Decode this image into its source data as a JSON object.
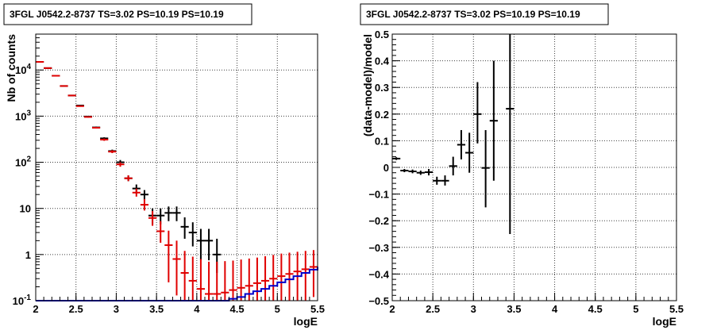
{
  "chart_data": [
    {
      "type": "scatter",
      "title": "3FGL J0542.2-8737 TS=3.02 PS=10.19 PS=10.19",
      "xlabel": "logE",
      "ylabel": "Nb of counts",
      "xlim": [
        2,
        5.5
      ],
      "ylim": [
        0.1,
        60000
      ],
      "yscale": "log",
      "grid": true,
      "x_ticks": [
        "2",
        "2.5",
        "3",
        "3.5",
        "4",
        "4.5",
        "5",
        "5.5"
      ],
      "y_ticks": [
        {
          "value": 0.1,
          "mantissa": "10",
          "exp": "-1"
        },
        {
          "value": 1,
          "mantissa": "1",
          "exp": ""
        },
        {
          "value": 10,
          "mantissa": "10",
          "exp": ""
        },
        {
          "value": 100,
          "mantissa": "10",
          "exp": "2"
        },
        {
          "value": 1000,
          "mantissa": "10",
          "exp": "3"
        },
        {
          "value": 10000,
          "mantissa": "10",
          "exp": "4"
        }
      ],
      "series": [
        {
          "color": "#000000",
          "points": [
            {
              "x": 2.05,
              "y": 15000,
              "lo": 14800,
              "hi": 15200
            },
            {
              "x": 2.15,
              "y": 11000,
              "lo": 10850,
              "hi": 11150
            },
            {
              "x": 2.25,
              "y": 7500,
              "lo": 7400,
              "hi": 7600
            },
            {
              "x": 2.35,
              "y": 4500,
              "lo": 4420,
              "hi": 4580
            },
            {
              "x": 2.45,
              "y": 2800,
              "lo": 2740,
              "hi": 2860
            },
            {
              "x": 2.55,
              "y": 1700,
              "lo": 1650,
              "hi": 1750
            },
            {
              "x": 2.65,
              "y": 980,
              "lo": 950,
              "hi": 1010
            },
            {
              "x": 2.75,
              "y": 570,
              "lo": 548,
              "hi": 592
            },
            {
              "x": 2.85,
              "y": 330,
              "lo": 312,
              "hi": 348
            },
            {
              "x": 2.95,
              "y": 175,
              "lo": 162,
              "hi": 188
            },
            {
              "x": 3.05,
              "y": 100,
              "lo": 88,
              "hi": 112
            },
            {
              "x": 3.15,
              "y": 45,
              "lo": 39,
              "hi": 52
            },
            {
              "x": 3.25,
              "y": 27,
              "lo": 21,
              "hi": 33
            },
            {
              "x": 3.35,
              "y": 20,
              "lo": 15,
              "hi": 25
            },
            {
              "x": 3.45,
              "y": 7,
              "lo": 4.5,
              "hi": 10
            },
            {
              "x": 3.55,
              "y": 7,
              "lo": 4.5,
              "hi": 10
            },
            {
              "x": 3.65,
              "y": 8,
              "lo": 5.3,
              "hi": 11
            },
            {
              "x": 3.75,
              "y": 8,
              "lo": 5.3,
              "hi": 11
            },
            {
              "x": 3.85,
              "y": 4,
              "lo": 2.2,
              "hi": 6.4
            },
            {
              "x": 3.95,
              "y": 3,
              "lo": 1.5,
              "hi": 5
            },
            {
              "x": 4.05,
              "y": 2,
              "lo": 0.75,
              "hi": 3.6
            },
            {
              "x": 4.15,
              "y": 2,
              "lo": 0.75,
              "hi": 3.6
            },
            {
              "x": 4.25,
              "y": 1,
              "lo": 0.4,
              "hi": 2.2
            }
          ]
        },
        {
          "color": "#e00000",
          "points": [
            {
              "x": 2.05,
              "y": 15000,
              "lo": 14800,
              "hi": 15200
            },
            {
              "x": 2.15,
              "y": 11000,
              "lo": 10850,
              "hi": 11150
            },
            {
              "x": 2.25,
              "y": 7500,
              "lo": 7400,
              "hi": 7600
            },
            {
              "x": 2.35,
              "y": 4500,
              "lo": 4420,
              "hi": 4580
            },
            {
              "x": 2.45,
              "y": 2800,
              "lo": 2740,
              "hi": 2860
            },
            {
              "x": 2.55,
              "y": 1650,
              "lo": 1600,
              "hi": 1700
            },
            {
              "x": 2.65,
              "y": 960,
              "lo": 930,
              "hi": 990
            },
            {
              "x": 2.75,
              "y": 560,
              "lo": 540,
              "hi": 580
            },
            {
              "x": 2.85,
              "y": 310,
              "lo": 292,
              "hi": 328
            },
            {
              "x": 2.95,
              "y": 170,
              "lo": 158,
              "hi": 182
            },
            {
              "x": 3.05,
              "y": 90,
              "lo": 80,
              "hi": 100
            },
            {
              "x": 3.15,
              "y": 45,
              "lo": 39,
              "hi": 52
            },
            {
              "x": 3.25,
              "y": 22,
              "lo": 18,
              "hi": 27
            },
            {
              "x": 3.35,
              "y": 12,
              "lo": 9,
              "hi": 16
            },
            {
              "x": 3.45,
              "y": 6.2,
              "lo": 4.2,
              "hi": 8.8
            },
            {
              "x": 3.55,
              "y": 3.2,
              "lo": 1.8,
              "hi": 5.3
            },
            {
              "x": 3.65,
              "y": 1.6,
              "lo": 0.25,
              "hi": 3.3
            },
            {
              "x": 3.75,
              "y": 0.8,
              "lo": 0.13,
              "hi": 2
            },
            {
              "x": 3.85,
              "y": 0.4,
              "lo": 0.1,
              "hi": 1.2
            },
            {
              "x": 3.95,
              "y": 0.27,
              "lo": 0.1,
              "hi": 0.9
            },
            {
              "x": 4.05,
              "y": 0.18,
              "lo": 0.1,
              "hi": 0.8
            },
            {
              "x": 4.15,
              "y": 0.14,
              "lo": 0.1,
              "hi": 0.7
            },
            {
              "x": 4.25,
              "y": 0.14,
              "lo": 0.1,
              "hi": 0.7
            },
            {
              "x": 4.35,
              "y": 0.15,
              "lo": 0.1,
              "hi": 0.72
            },
            {
              "x": 4.45,
              "y": 0.17,
              "lo": 0.1,
              "hi": 0.74
            },
            {
              "x": 4.55,
              "y": 0.19,
              "lo": 0.1,
              "hi": 0.78
            },
            {
              "x": 4.65,
              "y": 0.21,
              "lo": 0.1,
              "hi": 0.82
            },
            {
              "x": 4.75,
              "y": 0.24,
              "lo": 0.1,
              "hi": 0.86
            },
            {
              "x": 4.85,
              "y": 0.27,
              "lo": 0.1,
              "hi": 0.92
            },
            {
              "x": 4.95,
              "y": 0.3,
              "lo": 0.1,
              "hi": 0.98
            },
            {
              "x": 5.05,
              "y": 0.34,
              "lo": 0.1,
              "hi": 1.05
            },
            {
              "x": 5.15,
              "y": 0.38,
              "lo": 0.1,
              "hi": 1.1
            },
            {
              "x": 5.25,
              "y": 0.43,
              "lo": 0.1,
              "hi": 1.15
            },
            {
              "x": 5.35,
              "y": 0.48,
              "lo": 0.1,
              "hi": 1.2
            },
            {
              "x": 5.45,
              "y": 0.54,
              "lo": 0.12,
              "hi": 1.25
            }
          ]
        },
        {
          "color": "#0000cc",
          "step": [
            {
              "x": 2.0,
              "y": 0.1
            },
            {
              "x": 4.3,
              "y": 0.1
            },
            {
              "x": 4.4,
              "y": 0.11
            },
            {
              "x": 4.5,
              "y": 0.12
            },
            {
              "x": 4.6,
              "y": 0.14
            },
            {
              "x": 4.7,
              "y": 0.16
            },
            {
              "x": 4.8,
              "y": 0.18
            },
            {
              "x": 4.9,
              "y": 0.21
            },
            {
              "x": 5.0,
              "y": 0.25
            },
            {
              "x": 5.1,
              "y": 0.29
            },
            {
              "x": 5.2,
              "y": 0.34
            },
            {
              "x": 5.3,
              "y": 0.4
            },
            {
              "x": 5.4,
              "y": 0.47
            },
            {
              "x": 5.5,
              "y": 0.54
            }
          ]
        }
      ]
    },
    {
      "type": "scatter",
      "title": "3FGL J0542.2-8737 TS=3.02 PS=10.19 PS=10.19",
      "xlabel": "logE",
      "ylabel": "(data-model)/model",
      "xlim": [
        2,
        5.5
      ],
      "ylim": [
        -0.5,
        0.5
      ],
      "yscale": "linear",
      "grid": true,
      "x_ticks": [
        "2",
        "2.5",
        "3",
        "3.5",
        "4",
        "4.5",
        "5",
        "5.5"
      ],
      "y_ticks": [
        "0.5",
        "0.4",
        "0.3",
        "0.2",
        "0.1",
        "0",
        "−0.1",
        "−0.2",
        "−0.3",
        "−0.4",
        "−0.5"
      ],
      "series": [
        {
          "color": "#000000",
          "points": [
            {
              "x": 2.05,
              "y": 0.033,
              "lo": 0.028,
              "hi": 0.038
            },
            {
              "x": 2.15,
              "y": -0.012,
              "lo": -0.018,
              "hi": -0.006
            },
            {
              "x": 2.25,
              "y": -0.015,
              "lo": -0.022,
              "hi": -0.008
            },
            {
              "x": 2.35,
              "y": -0.02,
              "lo": -0.028,
              "hi": -0.012
            },
            {
              "x": 2.45,
              "y": -0.018,
              "lo": -0.03,
              "hi": -0.006
            },
            {
              "x": 2.55,
              "y": -0.05,
              "lo": -0.065,
              "hi": -0.035
            },
            {
              "x": 2.65,
              "y": -0.05,
              "lo": -0.068,
              "hi": -0.03
            },
            {
              "x": 2.75,
              "y": 0.005,
              "lo": -0.03,
              "hi": 0.04
            },
            {
              "x": 2.85,
              "y": 0.085,
              "lo": 0.03,
              "hi": 0.14
            },
            {
              "x": 2.95,
              "y": 0.055,
              "lo": -0.02,
              "hi": 0.13
            },
            {
              "x": 3.05,
              "y": 0.2,
              "lo": 0.09,
              "hi": 0.32
            },
            {
              "x": 3.15,
              "y": -0.002,
              "lo": -0.15,
              "hi": 0.14
            },
            {
              "x": 3.25,
              "y": 0.175,
              "lo": -0.05,
              "hi": 0.4
            },
            {
              "x": 3.45,
              "y": 0.22,
              "lo": -0.25,
              "hi": 0.5
            }
          ]
        }
      ]
    }
  ]
}
